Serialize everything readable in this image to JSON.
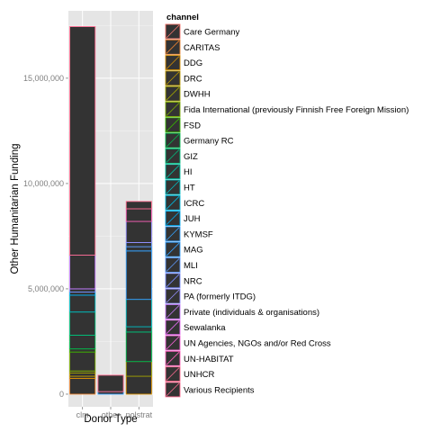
{
  "chart_data": {
    "type": "bar",
    "stacked": true,
    "categories": [
      "clm",
      "other",
      "polstrat"
    ],
    "xlabel": "Donor Type",
    "ylabel": "Other Humanitarian Funding",
    "ylim": [
      -600000,
      18200000
    ],
    "yticks": [
      0,
      5000000,
      10000000,
      15000000
    ],
    "ytick_labels": [
      "0",
      "5,000,000",
      "10,000,000",
      "15,000,000"
    ],
    "grid": true,
    "legend": {
      "title": "channel",
      "placement": "right",
      "entries": [
        {
          "name": "Care Germany",
          "color": "#F8766D"
        },
        {
          "name": "CARITAS",
          "color": "#EA8331"
        },
        {
          "name": "DDG",
          "color": "#D89000"
        },
        {
          "name": "DRC",
          "color": "#C09B00"
        },
        {
          "name": "DWHH",
          "color": "#A3A500"
        },
        {
          "name": "Fida International (previously Finnish Free Foreign Mission)",
          "color": "#7CAE00"
        },
        {
          "name": "FSD",
          "color": "#39B600"
        },
        {
          "name": "Germany RC",
          "color": "#00BB4E"
        },
        {
          "name": "GIZ",
          "color": "#00BF7D"
        },
        {
          "name": "HI",
          "color": "#00C1A3"
        },
        {
          "name": "HT",
          "color": "#00BFC4"
        },
        {
          "name": "ICRC",
          "color": "#00BAE0"
        },
        {
          "name": "JUH",
          "color": "#00B0F6"
        },
        {
          "name": "KYMSF",
          "color": "#35A2FF"
        },
        {
          "name": "MAG",
          "color": "#35A2FF"
        },
        {
          "name": "MLI",
          "color": "#619CFF"
        },
        {
          "name": "NRC",
          "color": "#7B8DFF"
        },
        {
          "name": "PA (formerly ITDG)",
          "color": "#9590FF"
        },
        {
          "name": "Private (individuals & organisations)",
          "color": "#C77CFF"
        },
        {
          "name": "Sewalanka",
          "color": "#E76BF3"
        },
        {
          "name": "UN Agencies, NGOs and/or Red Cross",
          "color": "#FA62DB"
        },
        {
          "name": "UN-HABITAT",
          "color": "#FF62BC"
        },
        {
          "name": "UNHCR",
          "color": "#FF6C91"
        },
        {
          "name": "Various Recipients",
          "color": "#FF6C91"
        }
      ]
    },
    "series": [
      {
        "category": "clm",
        "segments": [
          {
            "channel": "CARITAS",
            "from": 0,
            "to": 750000
          },
          {
            "channel": "DDG",
            "from": 750000,
            "to": 850000
          },
          {
            "channel": "DRC",
            "from": 850000,
            "to": 1000000
          },
          {
            "channel": "DWHH",
            "from": 1000000,
            "to": 1100000
          },
          {
            "channel": "Fida International (previously Finnish Free Foreign Mission)",
            "from": 1100000,
            "to": 2000000
          },
          {
            "channel": "FSD",
            "from": 2000000,
            "to": 2150000
          },
          {
            "channel": "Germany RC",
            "from": 2150000,
            "to": 2800000
          },
          {
            "channel": "GIZ",
            "from": 2800000,
            "to": 3900000
          },
          {
            "channel": "HT",
            "from": 3900000,
            "to": 4700000
          },
          {
            "channel": "JUH",
            "from": 4700000,
            "to": 4850000
          },
          {
            "channel": "NRC",
            "from": 4850000,
            "to": 5000000
          },
          {
            "channel": "Private (individuals & organisations)",
            "from": 5000000,
            "to": 6600000
          },
          {
            "channel": "Various Recipients",
            "from": 6600000,
            "to": 17450000
          }
        ]
      },
      {
        "category": "other",
        "segments": [
          {
            "channel": "MAG",
            "from": 0,
            "to": 120000
          },
          {
            "channel": "UNHCR",
            "from": 120000,
            "to": 900000
          }
        ]
      },
      {
        "category": "polstrat",
        "segments": [
          {
            "channel": "DDG",
            "from": 0,
            "to": 850000
          },
          {
            "channel": "DWHH",
            "from": 850000,
            "to": 1550000
          },
          {
            "channel": "Germany RC",
            "from": 1550000,
            "to": 2950000
          },
          {
            "channel": "GIZ",
            "from": 2950000,
            "to": 3200000
          },
          {
            "channel": "HT",
            "from": 3200000,
            "to": 4500000
          },
          {
            "channel": "KYMSF",
            "from": 4500000,
            "to": 6800000
          },
          {
            "channel": "MAG",
            "from": 6800000,
            "to": 7000000
          },
          {
            "channel": "MLI",
            "from": 7000000,
            "to": 7200000
          },
          {
            "channel": "PA (formerly ITDG)",
            "from": 7200000,
            "to": 8200000
          },
          {
            "channel": "UN-HABITAT",
            "from": 8200000,
            "to": 8800000
          },
          {
            "channel": "Various Recipients",
            "from": 8800000,
            "to": 9150000
          }
        ]
      }
    ]
  }
}
